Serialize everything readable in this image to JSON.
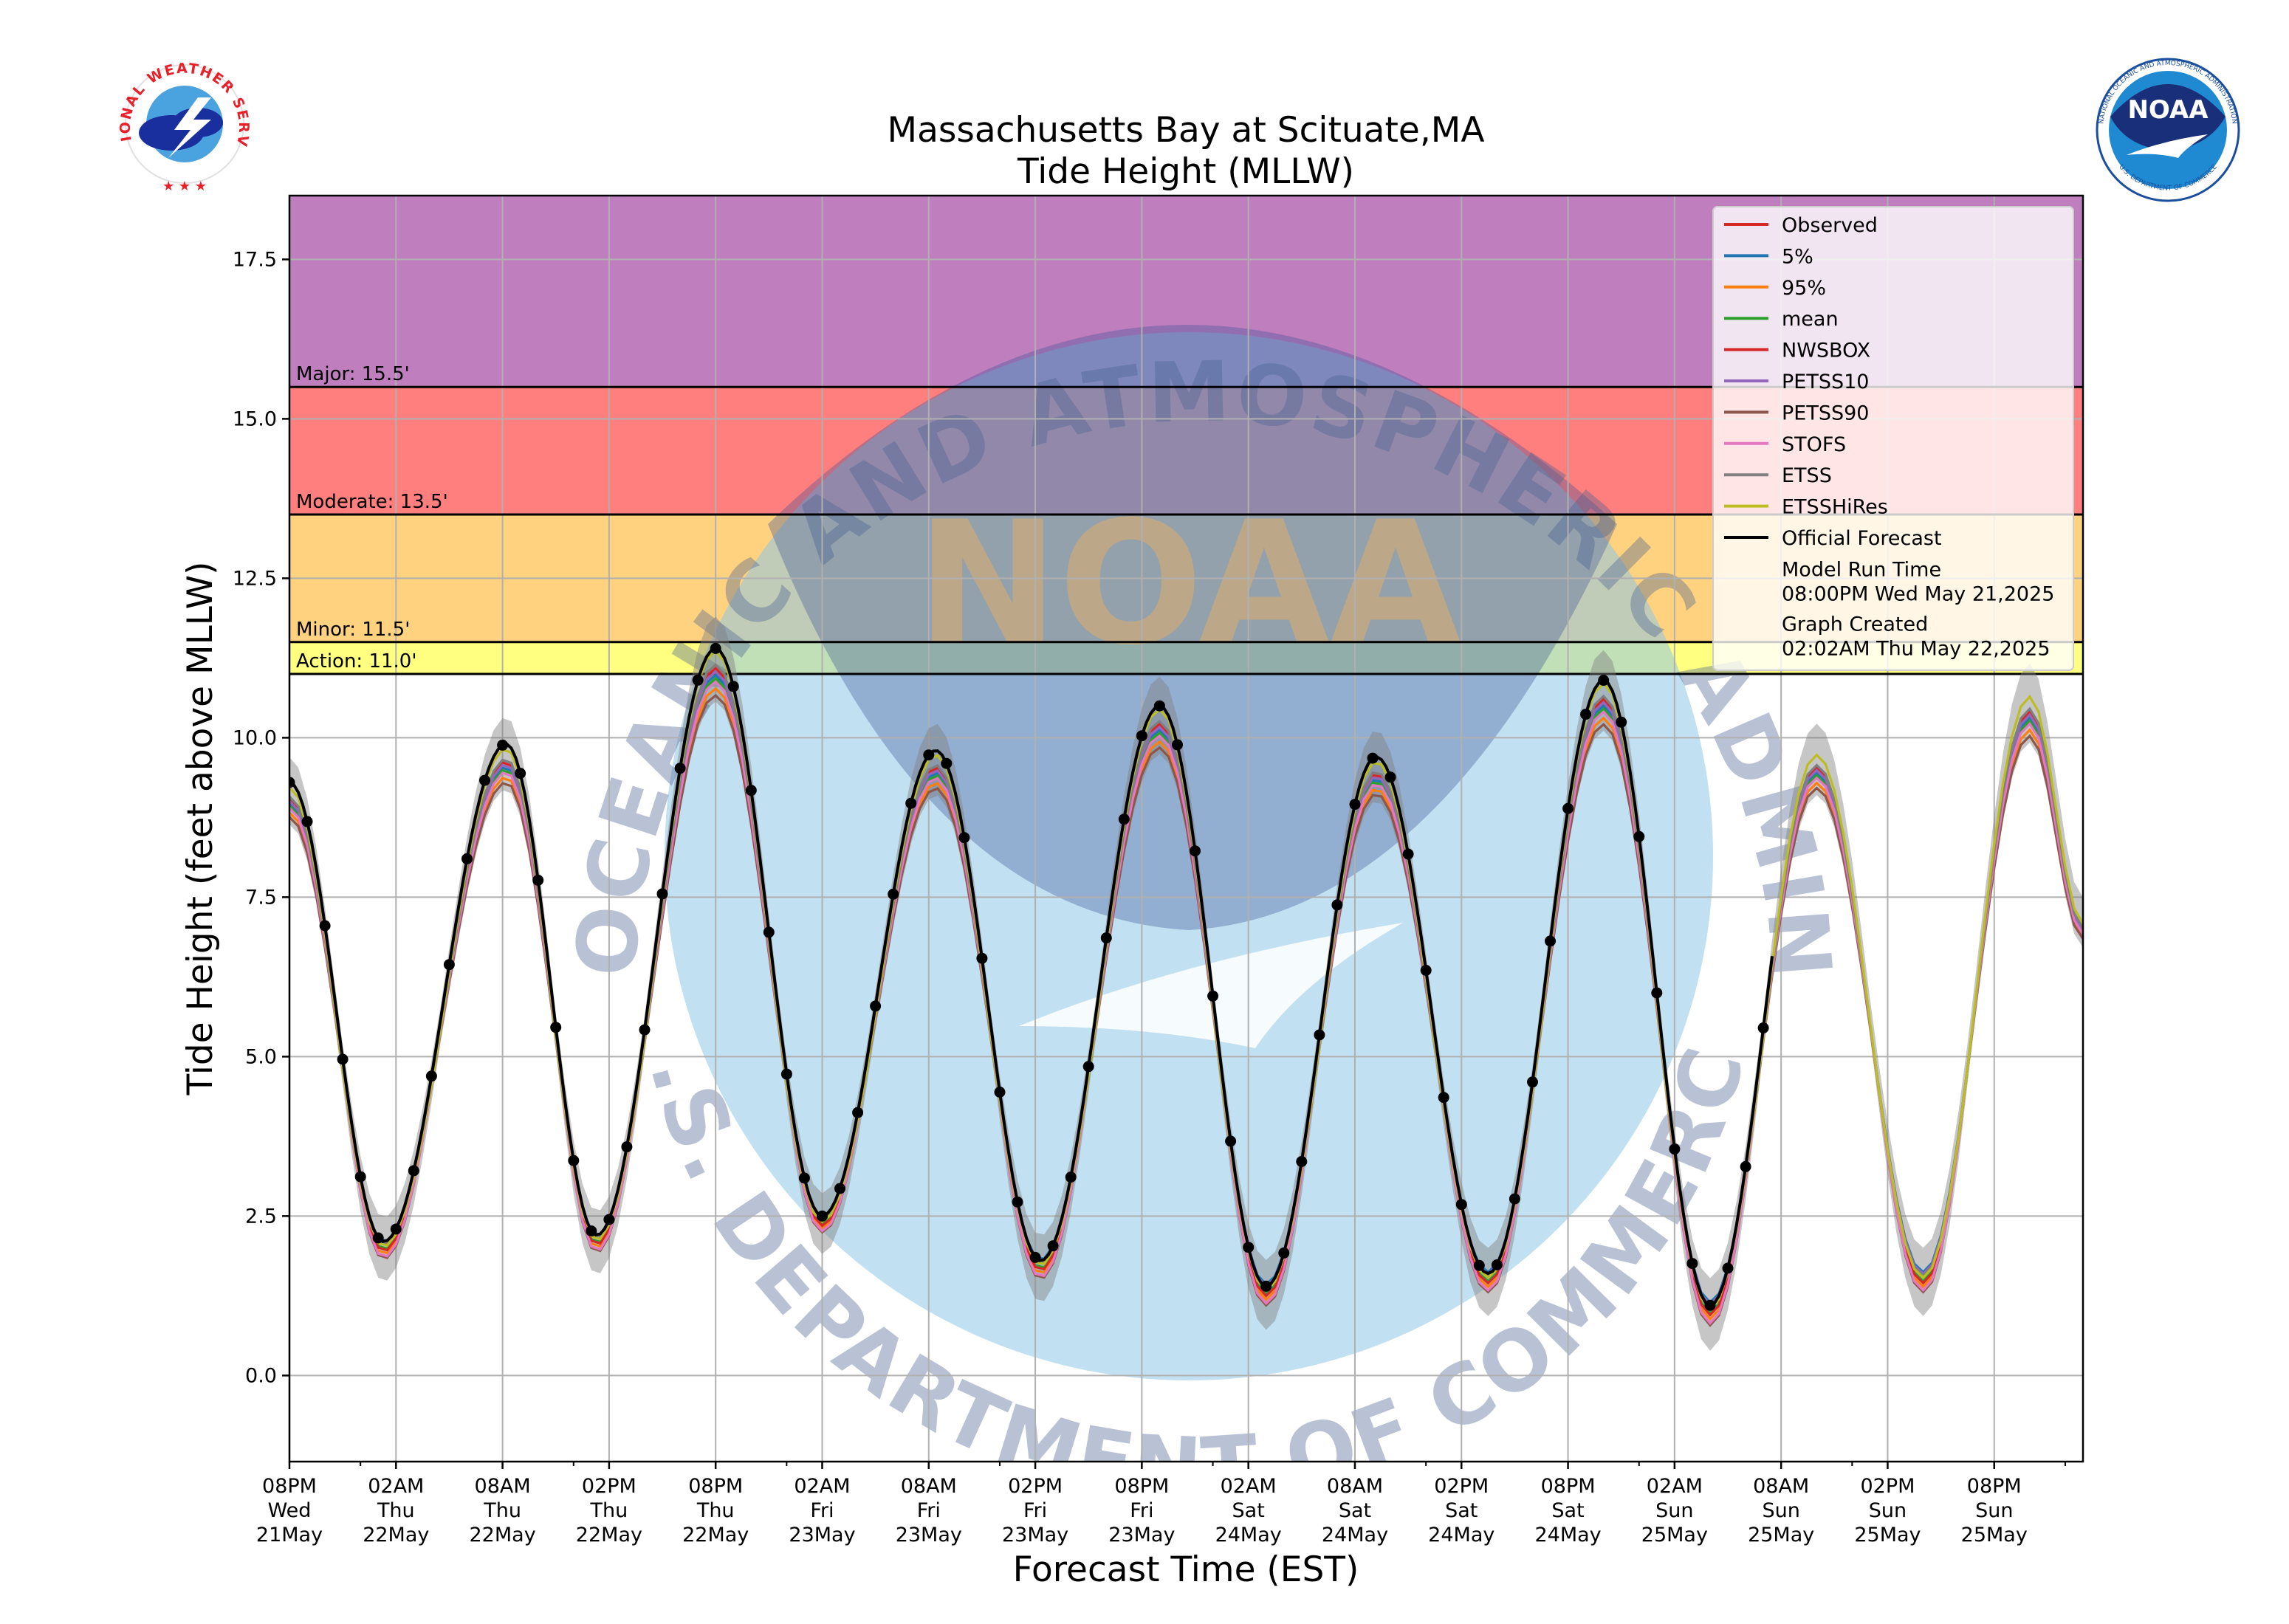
{
  "header": {
    "title_line1": "Massachusetts Bay at Scituate,MA",
    "title_line2": "Tide Height (MLLW)"
  },
  "logos": {
    "left_text": "NATIONAL WEATHER SERVICE",
    "right_text": "NOAA",
    "right_ring_text_top": "NATIONAL OCEANIC AND ATMOSPHERIC ADMINISTRATION",
    "right_ring_text_bottom": "U.S. DEPARTMENT OF COMMERCE"
  },
  "watermark": {
    "ring_top": "NATIONAL OCEANIC AND ATMOSPHERIC ADMINISTRATION",
    "ring_bottom": "U.S. DEPARTMENT OF COMMERCE",
    "center": "NOAA"
  },
  "chart_data": {
    "type": "line",
    "title": "Massachusetts Bay at Scituate,MA\nTide Height (MLLW)",
    "xlabel": "Forecast Time (EST)",
    "ylabel": "Tide Height (feet above MLLW)",
    "ylim": [
      -1.35,
      18.5
    ],
    "xlim_hours": [
      0,
      101
    ],
    "grid": true,
    "legend_position": "top-right",
    "y_ticks": [
      "0.0",
      "2.5",
      "5.0",
      "7.5",
      "10.0",
      "12.5",
      "15.0",
      "17.5"
    ],
    "x_ticks": [
      {
        "hour": 0,
        "lines": [
          "08PM",
          "Wed",
          "21May"
        ]
      },
      {
        "hour": 6,
        "lines": [
          "02AM",
          "Thu",
          "22May"
        ]
      },
      {
        "hour": 12,
        "lines": [
          "08AM",
          "Thu",
          "22May"
        ]
      },
      {
        "hour": 18,
        "lines": [
          "02PM",
          "Thu",
          "22May"
        ]
      },
      {
        "hour": 24,
        "lines": [
          "08PM",
          "Thu",
          "22May"
        ]
      },
      {
        "hour": 30,
        "lines": [
          "02AM",
          "Fri",
          "23May"
        ]
      },
      {
        "hour": 36,
        "lines": [
          "08AM",
          "Fri",
          "23May"
        ]
      },
      {
        "hour": 42,
        "lines": [
          "02PM",
          "Fri",
          "23May"
        ]
      },
      {
        "hour": 48,
        "lines": [
          "08PM",
          "Fri",
          "23May"
        ]
      },
      {
        "hour": 54,
        "lines": [
          "02AM",
          "Sat",
          "24May"
        ]
      },
      {
        "hour": 60,
        "lines": [
          "08AM",
          "Sat",
          "24May"
        ]
      },
      {
        "hour": 66,
        "lines": [
          "02PM",
          "Sat",
          "24May"
        ]
      },
      {
        "hour": 72,
        "lines": [
          "08PM",
          "Sat",
          "24May"
        ]
      },
      {
        "hour": 78,
        "lines": [
          "02AM",
          "Sun",
          "25May"
        ]
      },
      {
        "hour": 84,
        "lines": [
          "08AM",
          "Sun",
          "25May"
        ]
      },
      {
        "hour": 90,
        "lines": [
          "02PM",
          "Sun",
          "25May"
        ]
      },
      {
        "hour": 96,
        "lines": [
          "08PM",
          "Sun",
          "25May"
        ]
      }
    ],
    "thresholds": [
      {
        "name": "Major",
        "label": "Major: 15.5'",
        "value": 15.5,
        "color": "#bf7fbf"
      },
      {
        "name": "Moderate",
        "label": "Moderate: 13.5'",
        "value": 13.5,
        "color": "#ff7f7f"
      },
      {
        "name": "Minor",
        "label": "Minor: 11.5'",
        "value": 11.5,
        "color": "#ffd280"
      },
      {
        "name": "Action",
        "label": "Action: 11.0'",
        "value": 11.0,
        "color": "#ffff80"
      }
    ],
    "extremes": [
      {
        "hour": 0,
        "value": 9.3
      },
      {
        "hour": 5.3,
        "value": 2.1
      },
      {
        "hour": 12.2,
        "value": 9.9
      },
      {
        "hour": 17.3,
        "value": 2.2
      },
      {
        "hour": 24.0,
        "value": 11.4
      },
      {
        "hour": 30.0,
        "value": 2.5
      },
      {
        "hour": 36.4,
        "value": 9.8
      },
      {
        "hour": 42.3,
        "value": 1.8
      },
      {
        "hour": 49.0,
        "value": 10.5
      },
      {
        "hour": 55.0,
        "value": 1.4
      },
      {
        "hour": 61.2,
        "value": 9.7
      },
      {
        "hour": 67.5,
        "value": 1.6
      },
      {
        "hour": 74.0,
        "value": 10.9
      },
      {
        "hour": 80.0,
        "value": 1.1
      },
      {
        "hour": 86.0,
        "value": 9.8
      },
      {
        "hour": 92.0,
        "value": 1.6
      },
      {
        "hour": 98.0,
        "value": 10.7
      },
      {
        "hour": 101.0,
        "value": 7.2
      }
    ],
    "official_forecast_end_hour": 83.5,
    "series": [
      {
        "name": "Observed",
        "color": "#d62728"
      },
      {
        "name": "5%",
        "color": "#1f77b4"
      },
      {
        "name": "95%",
        "color": "#ff7f0e"
      },
      {
        "name": "mean",
        "color": "#2ca02c"
      },
      {
        "name": "NWSBOX",
        "color": "#d62728"
      },
      {
        "name": "PETSS10",
        "color": "#9467bd"
      },
      {
        "name": "PETSS90",
        "color": "#8c564b"
      },
      {
        "name": "STOFS",
        "color": "#e377c2"
      },
      {
        "name": "ETSS",
        "color": "#7f7f7f"
      },
      {
        "name": "ETSSHiRes",
        "color": "#bcbd22"
      },
      {
        "name": "Official Forecast",
        "color": "#000000"
      }
    ],
    "legend_notes": [
      {
        "label": "Model Run Time",
        "value": "08:00PM Wed May 21,2025"
      },
      {
        "label": "Graph Created",
        "value": "02:02AM Thu May 22,2025"
      }
    ]
  }
}
